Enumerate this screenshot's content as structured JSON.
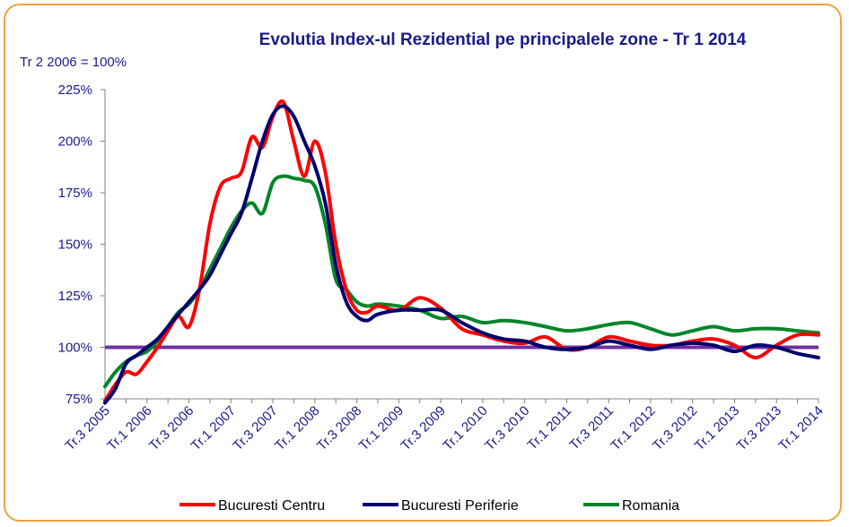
{
  "chart_data": {
    "type": "line",
    "title": "Evolutia Index-ul Rezidential pe principalele zone - Tr 1 2014",
    "subtitle": "Tr 2 2006 = 100%",
    "xlabel": "",
    "ylabel": "",
    "ylim": [
      75,
      225
    ],
    "yticks": [
      75,
      100,
      125,
      150,
      175,
      200,
      225
    ],
    "ytick_labels": [
      "75%",
      "100%",
      "125%",
      "150%",
      "175%",
      "200%",
      "225%"
    ],
    "x_tick_labels": [
      "Tr.3 2005",
      "Tr.1 2006",
      "Tr.3 2006",
      "Tr.1 2007",
      "Tr.3 2007",
      "Tr.1 2008",
      "Tr.3 2008",
      "Tr.1 2009",
      "Tr.3 2009",
      "Tr.1 2010",
      "Tr.3 2010",
      "Tr.1 2011",
      "Tr.3 2011",
      "Tr.1 2012",
      "Tr.3 2012",
      "Tr.1 2013",
      "Tr.3 2013",
      "Tr.1 2014"
    ],
    "x_quarters": 34,
    "baseline": {
      "value": 100,
      "color": "#7030a0"
    },
    "legend_position": "bottom",
    "series": [
      {
        "name": "Bucuresti Centru",
        "color": "#ff0000",
        "x": [
          0,
          0.5,
          1,
          1.5,
          2,
          2.5,
          3,
          3.5,
          4,
          4.5,
          5,
          5.5,
          6,
          6.5,
          7,
          7.5,
          8,
          8.5,
          9,
          9.5,
          10,
          10.5,
          11,
          11.5,
          12,
          12.5,
          13,
          14,
          15,
          16,
          17,
          18,
          19,
          20,
          21,
          22,
          23,
          24,
          25,
          26,
          27,
          28,
          29,
          30,
          31,
          32,
          33,
          34
        ],
        "values": [
          74,
          82,
          88,
          87,
          93,
          100,
          108,
          115,
          110,
          128,
          160,
          178,
          182,
          185,
          202,
          197,
          212,
          219,
          200,
          183,
          200,
          185,
          150,
          128,
          118,
          117,
          120,
          118,
          124,
          119,
          109,
          106,
          103,
          102,
          105,
          99,
          100,
          105,
          103,
          101,
          101,
          103,
          104,
          101,
          95,
          101,
          106,
          106
        ]
      },
      {
        "name": "Bucuresti Periferie",
        "color": "#00006e",
        "x": [
          0,
          0.5,
          1,
          1.5,
          2,
          2.5,
          3,
          3.5,
          4,
          4.5,
          5,
          5.5,
          6,
          6.5,
          7,
          7.5,
          8,
          8.5,
          9,
          9.5,
          10,
          10.5,
          11,
          11.5,
          12,
          12.5,
          13,
          14,
          15,
          16,
          17,
          18,
          19,
          20,
          21,
          22,
          23,
          24,
          25,
          26,
          27,
          28,
          29,
          30,
          31,
          32,
          33,
          34
        ],
        "values": [
          68,
          80,
          92,
          96,
          100,
          104,
          110,
          116,
          122,
          128,
          135,
          145,
          155,
          165,
          182,
          200,
          213,
          217,
          212,
          200,
          188,
          170,
          140,
          122,
          115,
          113,
          116,
          118,
          118,
          118,
          112,
          107,
          104,
          103,
          100,
          99,
          100,
          103,
          101,
          99,
          101,
          102,
          101,
          98,
          101,
          100,
          97,
          95
        ]
      },
      {
        "name": "Romania",
        "color": "#00852a",
        "x": [
          0,
          0.5,
          1,
          1.5,
          2,
          2.5,
          3,
          3.5,
          4,
          4.5,
          5,
          5.5,
          6,
          6.5,
          7,
          7.5,
          8,
          8.5,
          9,
          9.5,
          10,
          10.5,
          11,
          11.5,
          12,
          12.5,
          13,
          14,
          15,
          16,
          17,
          18,
          19,
          20,
          21,
          22,
          23,
          24,
          25,
          26,
          27,
          28,
          29,
          30,
          31,
          32,
          33,
          34
        ],
        "values": [
          81,
          88,
          93,
          96,
          98,
          103,
          110,
          117,
          121,
          128,
          138,
          148,
          158,
          166,
          170,
          165,
          180,
          183,
          182,
          181,
          178,
          160,
          133,
          128,
          122,
          120,
          121,
          120,
          118,
          114,
          115,
          112,
          113,
          112,
          110,
          108,
          109,
          111,
          112,
          109,
          106,
          108,
          110,
          108,
          109,
          109,
          108,
          107
        ]
      }
    ]
  }
}
